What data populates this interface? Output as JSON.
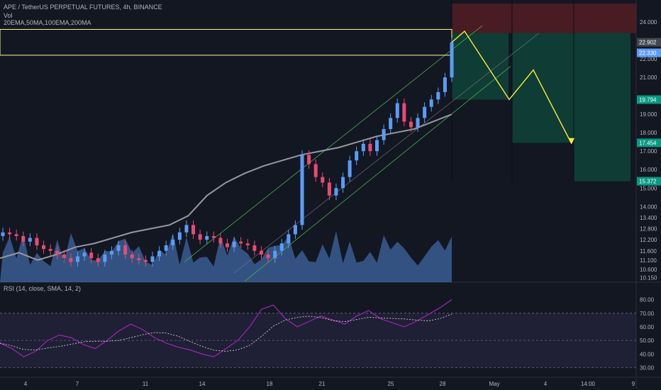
{
  "header": {
    "title": "APE / TetherUS PERPETUAL FUTURES, 4h, BINANCE",
    "vol": "Vol",
    "ma": "20EMA,50MA,100EMA,200MA"
  },
  "rsi": {
    "title": "RSI (14, close, SMA, 14, 2)",
    "levels": [
      80,
      70,
      60,
      50,
      40,
      30
    ],
    "overbought": 70,
    "oversold": 30
  },
  "colors": {
    "background": "#131722",
    "up": "#5b9cf6",
    "down": "#e84b72",
    "ma": "#9598a1",
    "channel": "#4caf50",
    "projection": "#ffeb3b",
    "rsi_line": "#9c27b0",
    "target_zone": "#0f3d35",
    "stop_zone": "#5c1f24",
    "target_label": "#089981"
  },
  "price_labels": [
    {
      "value": "22.902",
      "color": "#434651"
    },
    {
      "value": "22.330",
      "color": "#5b9cf6"
    },
    {
      "value": "19.794",
      "color": "#089981"
    },
    {
      "value": "17.454",
      "color": "#089981"
    },
    {
      "value": "15.372",
      "color": "#089981"
    }
  ],
  "chart_data": {
    "type": "candlestick",
    "title": "APE / TetherUS PERPETUAL FUTURES, 4h, BINANCE",
    "xlabel": "",
    "ylabel": "",
    "x_ticks": [
      "4",
      "7",
      "11",
      "14",
      "18",
      "21",
      "25",
      "28",
      "May",
      "4",
      "14:00",
      "9"
    ],
    "y_ticks": [
      24.0,
      22.0,
      21.0,
      19.0,
      18.0,
      17.0,
      16.0,
      15.0,
      14.0,
      13.4,
      12.8,
      12.2,
      11.6,
      11.1,
      10.6,
      10.15
    ],
    "ylim": [
      9.9,
      25.0
    ],
    "series": [
      {
        "values": [
          12.6,
          12.5,
          12.4,
          12.1,
          12.3,
          11.9,
          11.7,
          11.6,
          11.4,
          11.2,
          11.0,
          11.3,
          11.5,
          11.2,
          11.0,
          11.4,
          11.6,
          11.9,
          11.4,
          11.2,
          11.1,
          11.0,
          11.3,
          11.6,
          11.9,
          12.2,
          12.6,
          13.0,
          12.5,
          12.2,
          12.4,
          12.3,
          12.0,
          11.8,
          12.1,
          12.0,
          11.9,
          11.6,
          11.4,
          11.2,
          11.6,
          12.0,
          12.5,
          13.0,
          16.8,
          16.3,
          15.6,
          15.3,
          14.6,
          15.0,
          15.6,
          16.5,
          17.0,
          17.4,
          17.0,
          17.6,
          18.2,
          18.8,
          19.6,
          18.6,
          18.3,
          18.8,
          19.4,
          19.8,
          20.2,
          21.0,
          22.9
        ]
      },
      {
        "values": [
          11.2,
          11.5,
          11.1,
          11.4,
          11.8,
          12.0,
          12.3,
          12.6,
          12.8,
          13.0,
          13.5,
          14.6,
          15.3,
          15.8,
          16.2,
          16.5,
          16.8,
          17.0,
          17.2,
          17.5,
          17.8,
          18.0,
          18.2,
          18.6,
          19.0
        ]
      },
      {
        "values": [
          48,
          44,
          38,
          42,
          50,
          54,
          52,
          47,
          44,
          50,
          57,
          62,
          58,
          52,
          48,
          45,
          43,
          40,
          38,
          44,
          50,
          60,
          73,
          76,
          66,
          60,
          64,
          68,
          65,
          62,
          68,
          72,
          66,
          63,
          60,
          64,
          69,
          74,
          80
        ]
      }
    ],
    "projection": {
      "points": [
        22.9,
        23.5,
        19.8,
        21.4,
        17.4
      ],
      "stop": 23.4,
      "targets": [
        19.794,
        17.454,
        15.372
      ]
    }
  }
}
